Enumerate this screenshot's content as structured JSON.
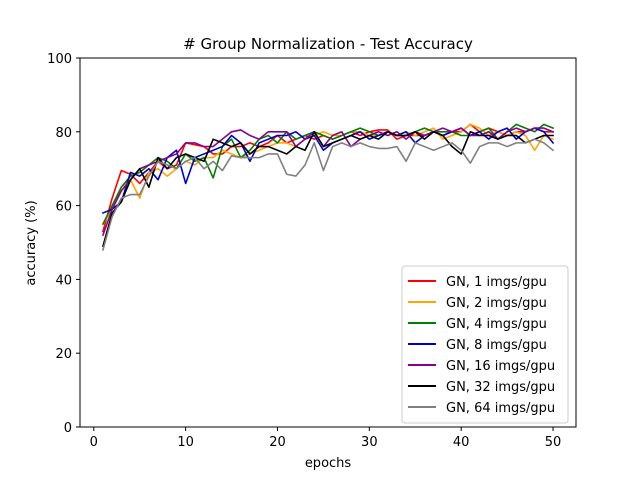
{
  "chart_data": {
    "type": "line",
    "title": "# Group Normalization - Test Accuracy",
    "xlabel": "epochs",
    "ylabel": "accuracy (%)",
    "xlim": [
      -1.5,
      52.5
    ],
    "ylim": [
      0,
      100
    ],
    "xticks": [
      0,
      10,
      20,
      30,
      40,
      50
    ],
    "yticks": [
      0,
      20,
      40,
      60,
      80,
      100
    ],
    "grid": false,
    "legend_position": "lower-right",
    "x": [
      1,
      2,
      3,
      4,
      5,
      6,
      7,
      8,
      9,
      10,
      11,
      12,
      13,
      14,
      15,
      16,
      17,
      18,
      19,
      20,
      21,
      22,
      23,
      24,
      25,
      26,
      27,
      28,
      29,
      30,
      31,
      32,
      33,
      34,
      35,
      36,
      37,
      38,
      39,
      40,
      41,
      42,
      43,
      44,
      45,
      46,
      47,
      48,
      49,
      50
    ],
    "series": [
      {
        "name": "GN, 1 imgs/gpu",
        "color": "#ff0000",
        "values": [
          53,
          62,
          69.5,
          68.5,
          66,
          69,
          72,
          70,
          71,
          77,
          76.5,
          76,
          74,
          74,
          76,
          76,
          77,
          76,
          77,
          79,
          77,
          78,
          79,
          78,
          79,
          78,
          79,
          80,
          79,
          80,
          80.5,
          80.5,
          78,
          79,
          79,
          79,
          80,
          79,
          80,
          80,
          82,
          80,
          81,
          80,
          79,
          80,
          80,
          81,
          80,
          80
        ]
      },
      {
        "name": "GN, 2 imgs/gpu",
        "color": "#ffa500",
        "values": [
          55,
          59,
          65,
          67,
          62,
          69,
          70,
          68,
          70,
          72,
          71,
          73,
          73,
          75,
          74,
          73,
          74,
          75,
          76,
          77,
          77,
          76,
          78,
          79,
          80,
          79,
          79,
          80,
          80,
          79,
          79,
          80,
          79,
          80,
          79,
          80,
          81,
          78,
          79,
          80,
          82,
          81,
          79,
          80,
          79,
          80,
          79,
          75,
          79,
          78
        ]
      },
      {
        "name": "GN, 4 imgs/gpu",
        "color": "#008000",
        "values": [
          55,
          60,
          65,
          68,
          69,
          71,
          73,
          72,
          70,
          74,
          72,
          73,
          67.5,
          76,
          78,
          73,
          75,
          78,
          79,
          77,
          80,
          78,
          79,
          80,
          79,
          78,
          79,
          80,
          81,
          80,
          79,
          80,
          79,
          79,
          80,
          81,
          80,
          80,
          80,
          79,
          79,
          80,
          81,
          78,
          80,
          82,
          81,
          80,
          82,
          81
        ]
      },
      {
        "name": "GN, 8 imgs/gpu",
        "color": "#0000cd",
        "values": [
          58,
          59,
          61,
          69,
          68,
          70,
          67,
          73,
          75,
          66,
          73,
          74,
          75,
          76,
          79,
          77,
          72,
          77,
          78,
          79,
          79,
          80,
          78,
          79,
          75,
          77,
          78,
          79,
          80,
          78,
          79,
          80,
          79,
          80,
          77,
          79,
          80,
          79,
          80,
          81,
          79,
          80,
          78,
          80,
          81,
          78,
          80,
          81,
          80,
          77
        ]
      },
      {
        "name": "GN, 16 imgs/gpu",
        "color": "#8b008b",
        "values": [
          52,
          59,
          64,
          67,
          70,
          71,
          72,
          73,
          74,
          77,
          77,
          76,
          76,
          78,
          80,
          80.5,
          79,
          78,
          80,
          80,
          80,
          76,
          78,
          80,
          76,
          79,
          80,
          76,
          78,
          79,
          80,
          79,
          80,
          78,
          80,
          79,
          80,
          81,
          80,
          81,
          79,
          79,
          80,
          78,
          80,
          81,
          80,
          81,
          81,
          80
        ]
      },
      {
        "name": "GN, 32 imgs/gpu",
        "color": "#000000",
        "values": [
          49,
          58,
          61,
          67,
          70,
          65,
          73,
          70,
          73,
          74,
          73,
          72,
          78,
          77,
          76,
          77,
          74,
          76,
          76,
          75,
          74,
          76,
          75,
          80,
          76,
          77,
          78,
          79,
          78,
          79,
          78,
          80,
          79,
          79,
          80,
          78,
          80,
          79,
          76,
          74,
          80,
          79,
          79,
          78,
          79,
          79,
          77,
          78,
          79,
          79
        ]
      },
      {
        "name": "GN, 64 imgs/gpu",
        "color": "#808080",
        "values": [
          48,
          57,
          62,
          63,
          63,
          68,
          72,
          71,
          70,
          72,
          73,
          70,
          72,
          69.5,
          73.5,
          73,
          73,
          73,
          74,
          74,
          68.5,
          68,
          71,
          77,
          69.5,
          76,
          77,
          76,
          77,
          76,
          75.5,
          75.5,
          76,
          72,
          77,
          76,
          75,
          76,
          77,
          75,
          71.5,
          76,
          77,
          77,
          76,
          77,
          77,
          78,
          77,
          75
        ]
      }
    ]
  }
}
